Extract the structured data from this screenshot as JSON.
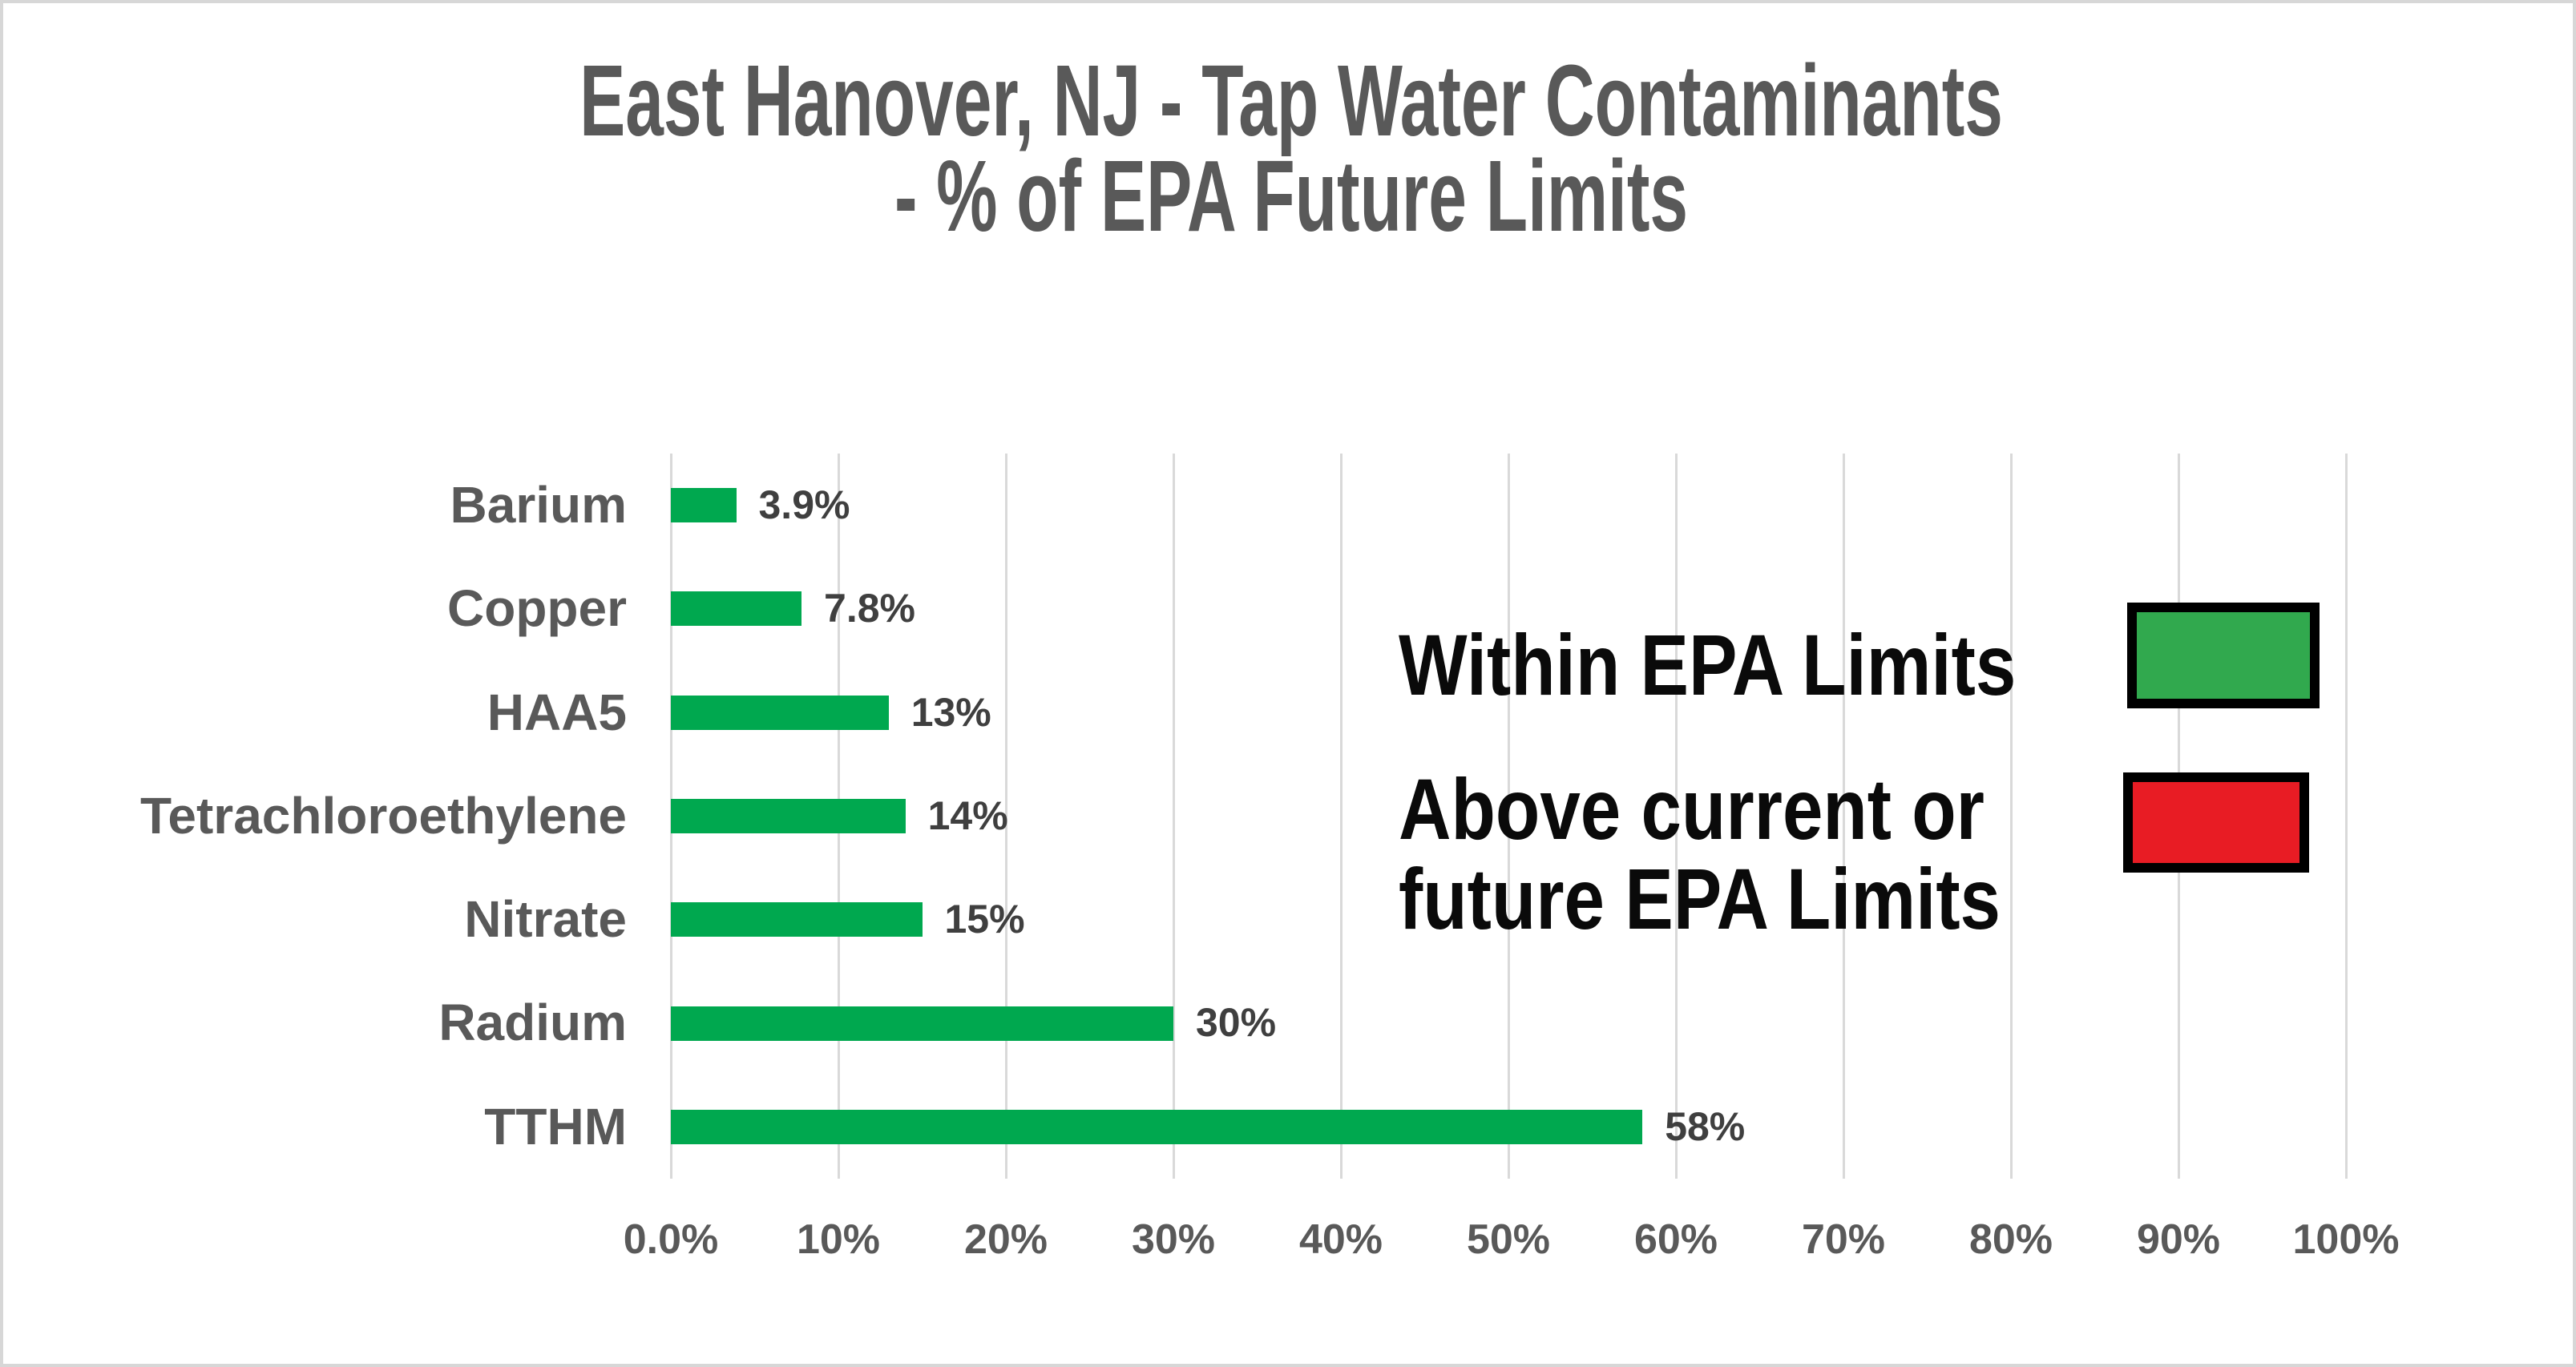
{
  "title": {
    "line1": "East Hanover, NJ - Tap Water Contaminants",
    "line2": "- % of EPA Future Limits"
  },
  "chart_data": {
    "type": "bar",
    "orientation": "horizontal",
    "title": "East Hanover, NJ - Tap Water Contaminants - % of EPA Future Limits",
    "xlabel": "",
    "ylabel": "",
    "categories": [
      "Barium",
      "Copper",
      "HAA5",
      "Tetrachloroethylene",
      "Nitrate",
      "Radium",
      "TTHM"
    ],
    "values": [
      3.9,
      7.8,
      13,
      14,
      15,
      30,
      58
    ],
    "value_labels": [
      "3.9%",
      "7.8%",
      "13%",
      "14%",
      "15%",
      "30%",
      "58%"
    ],
    "x_axis": {
      "min": 0,
      "max": 100,
      "tick_interval": 10,
      "tick_labels": [
        "0.0%",
        "10%",
        "20%",
        "30%",
        "40%",
        "50%",
        "60%",
        "70%",
        "80%",
        "90%",
        "100%"
      ],
      "grid": true
    },
    "bar_color": "#00a84f",
    "legend": {
      "position": "inside-right",
      "items": [
        {
          "label": "Within EPA Limits",
          "lines": [
            "Within EPA Limits"
          ],
          "color": "#31a94e"
        },
        {
          "label": "Above current or future EPA Limits",
          "lines": [
            "Above current or",
            "future EPA Limits"
          ],
          "color": "#e81c24"
        }
      ]
    }
  },
  "colors": {
    "title_text": "#595959",
    "category_text": "#595959",
    "value_text": "#3f3f3f",
    "tick_text": "#595959",
    "legend_text": "#0a0a0a",
    "gridline": "#d9d9d9",
    "frame_border": "#d7d7d7",
    "background": "#ffffff"
  }
}
